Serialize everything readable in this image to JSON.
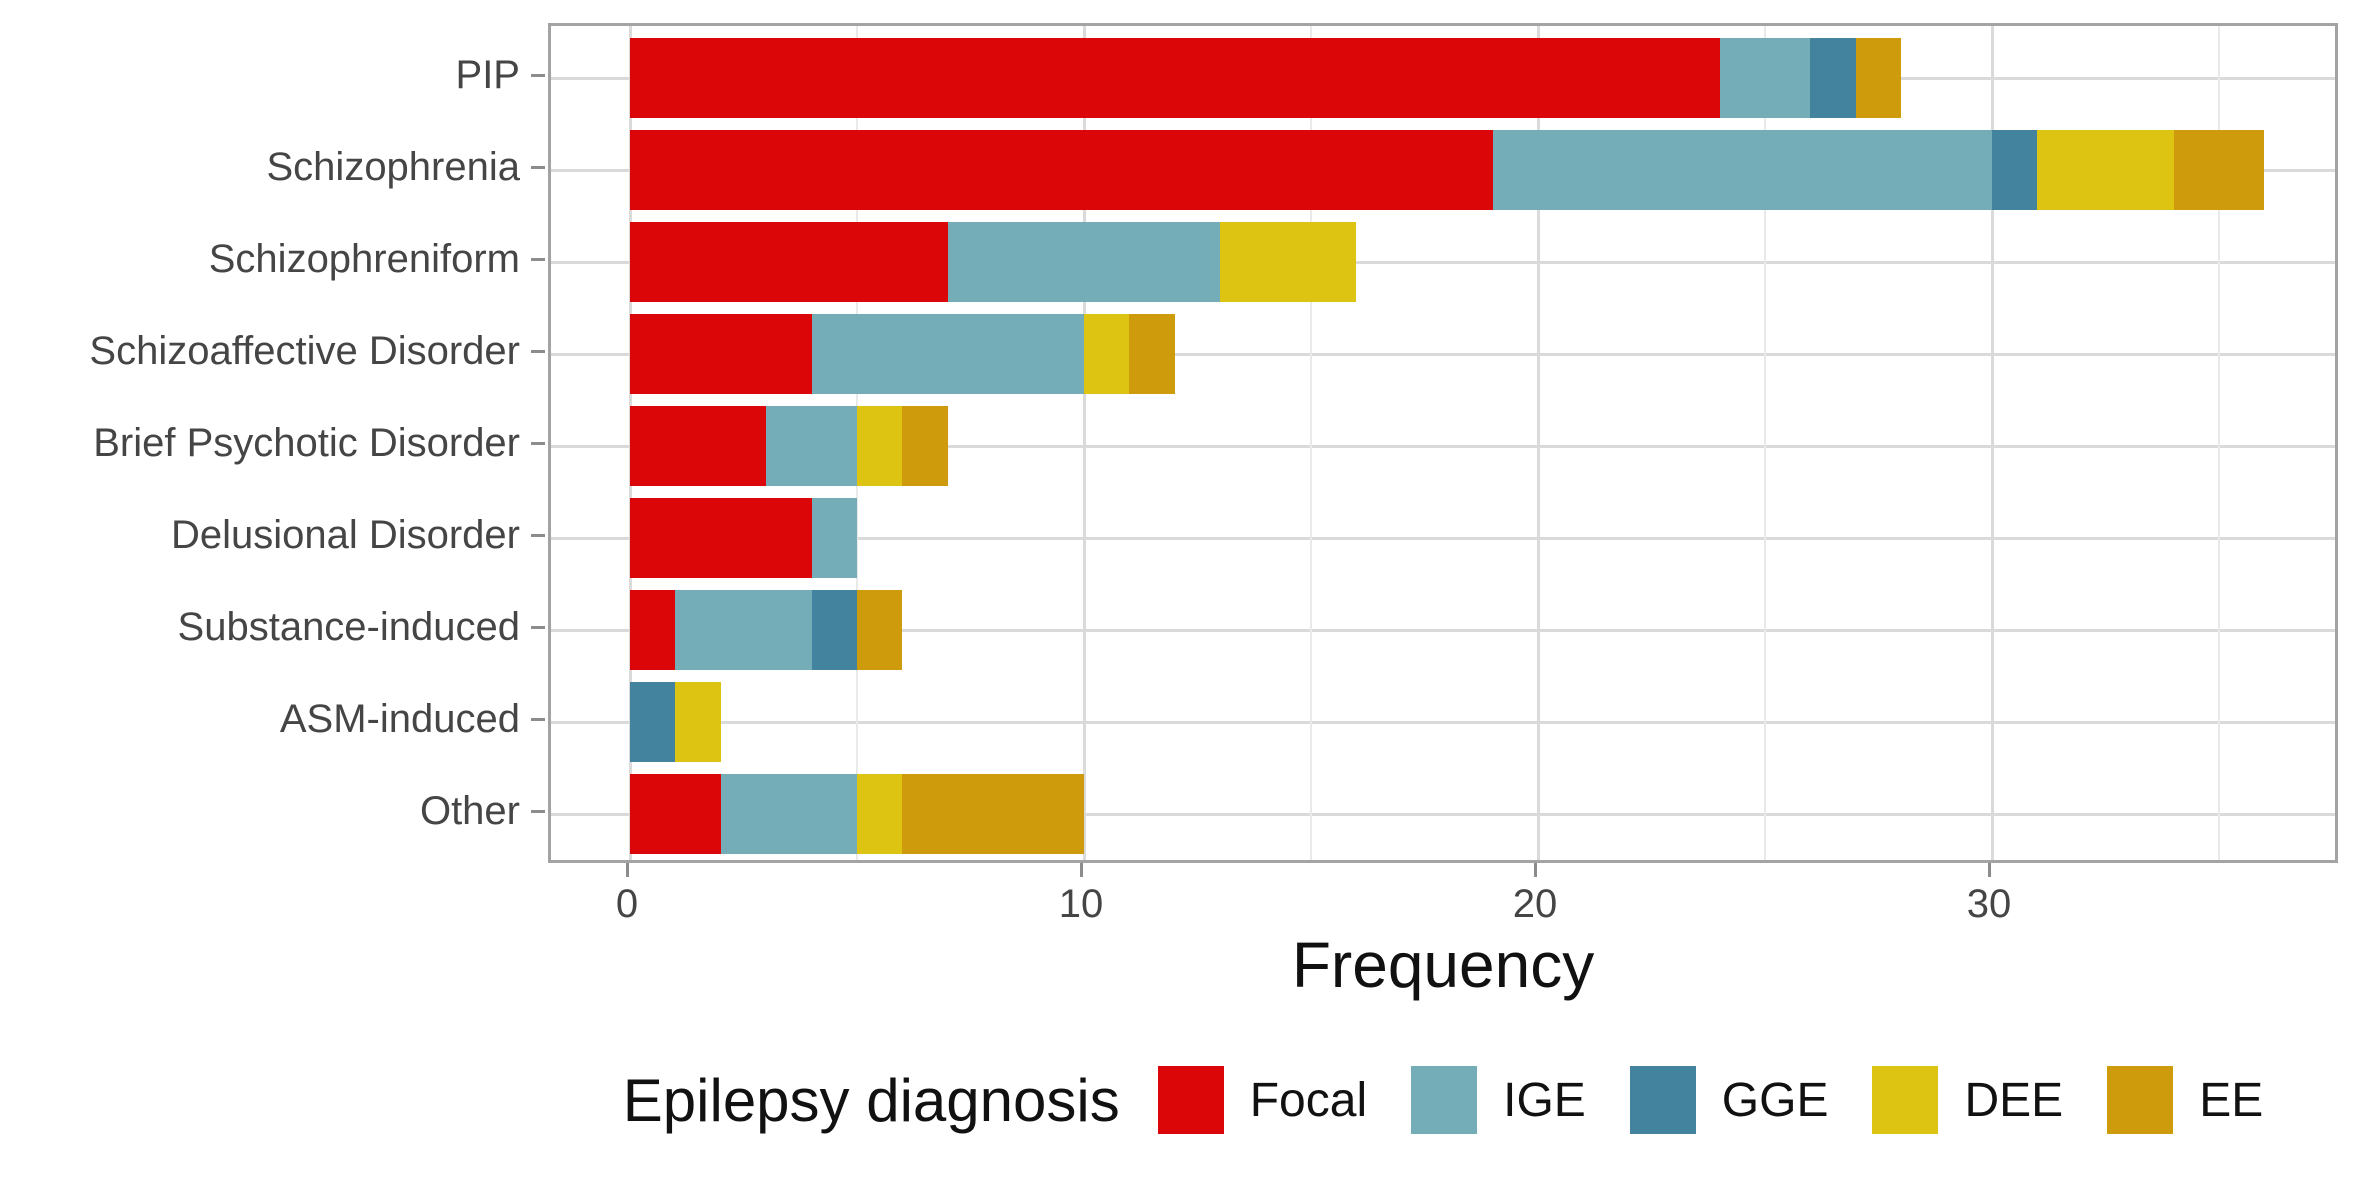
{
  "colors": {
    "focal": "#DB0607",
    "ige": "#74ACB8",
    "gge": "#44839E",
    "dee": "#DDC412",
    "ee": "#CE9B0C",
    "grid_major": "#DADADA",
    "grid_minor": "#E9E9E9",
    "panel_border": "#A3A3A3",
    "tick": "#8C8C8C",
    "tick_label": "#454545",
    "title_text": "#111111"
  },
  "chart_data": {
    "type": "bar",
    "orientation": "horizontal",
    "stacked": true,
    "title": "",
    "xlabel": "Frequency",
    "ylabel": "",
    "xlim": [
      0,
      36
    ],
    "x_ticks": [
      0,
      10,
      20,
      30
    ],
    "x_minor_gridlines": [
      5,
      15,
      25,
      35
    ],
    "grid": "on",
    "categories": [
      "PIP",
      "Schizophrenia",
      "Schizophreniform",
      "Schizoaffective Disorder",
      "Brief Psychotic Disorder",
      "Delusional Disorder",
      "Substance-induced",
      "ASM-induced",
      "Other"
    ],
    "series": [
      {
        "name": "Focal",
        "color": "#DB0607",
        "values": [
          24,
          19,
          7,
          4,
          3,
          4,
          1,
          0,
          2
        ]
      },
      {
        "name": "IGE",
        "color": "#74ACB8",
        "values": [
          2,
          11,
          6,
          6,
          2,
          1,
          3,
          0,
          3
        ]
      },
      {
        "name": "GGE",
        "color": "#44839E",
        "values": [
          1,
          1,
          0,
          0,
          0,
          0,
          1,
          1,
          0
        ]
      },
      {
        "name": "DEE",
        "color": "#DDC412",
        "values": [
          0,
          3,
          3,
          1,
          1,
          0,
          0,
          1,
          1
        ]
      },
      {
        "name": "EE",
        "color": "#CE9B0C",
        "values": [
          1,
          2,
          0,
          1,
          1,
          0,
          1,
          0,
          4
        ]
      }
    ],
    "totals": [
      28,
      36,
      16,
      12,
      7,
      5,
      6,
      2,
      10
    ],
    "legend": {
      "title": "Epilepsy diagnosis",
      "position": "bottom",
      "entries": [
        "Focal",
        "IGE",
        "GGE",
        "DEE",
        "EE"
      ]
    }
  }
}
